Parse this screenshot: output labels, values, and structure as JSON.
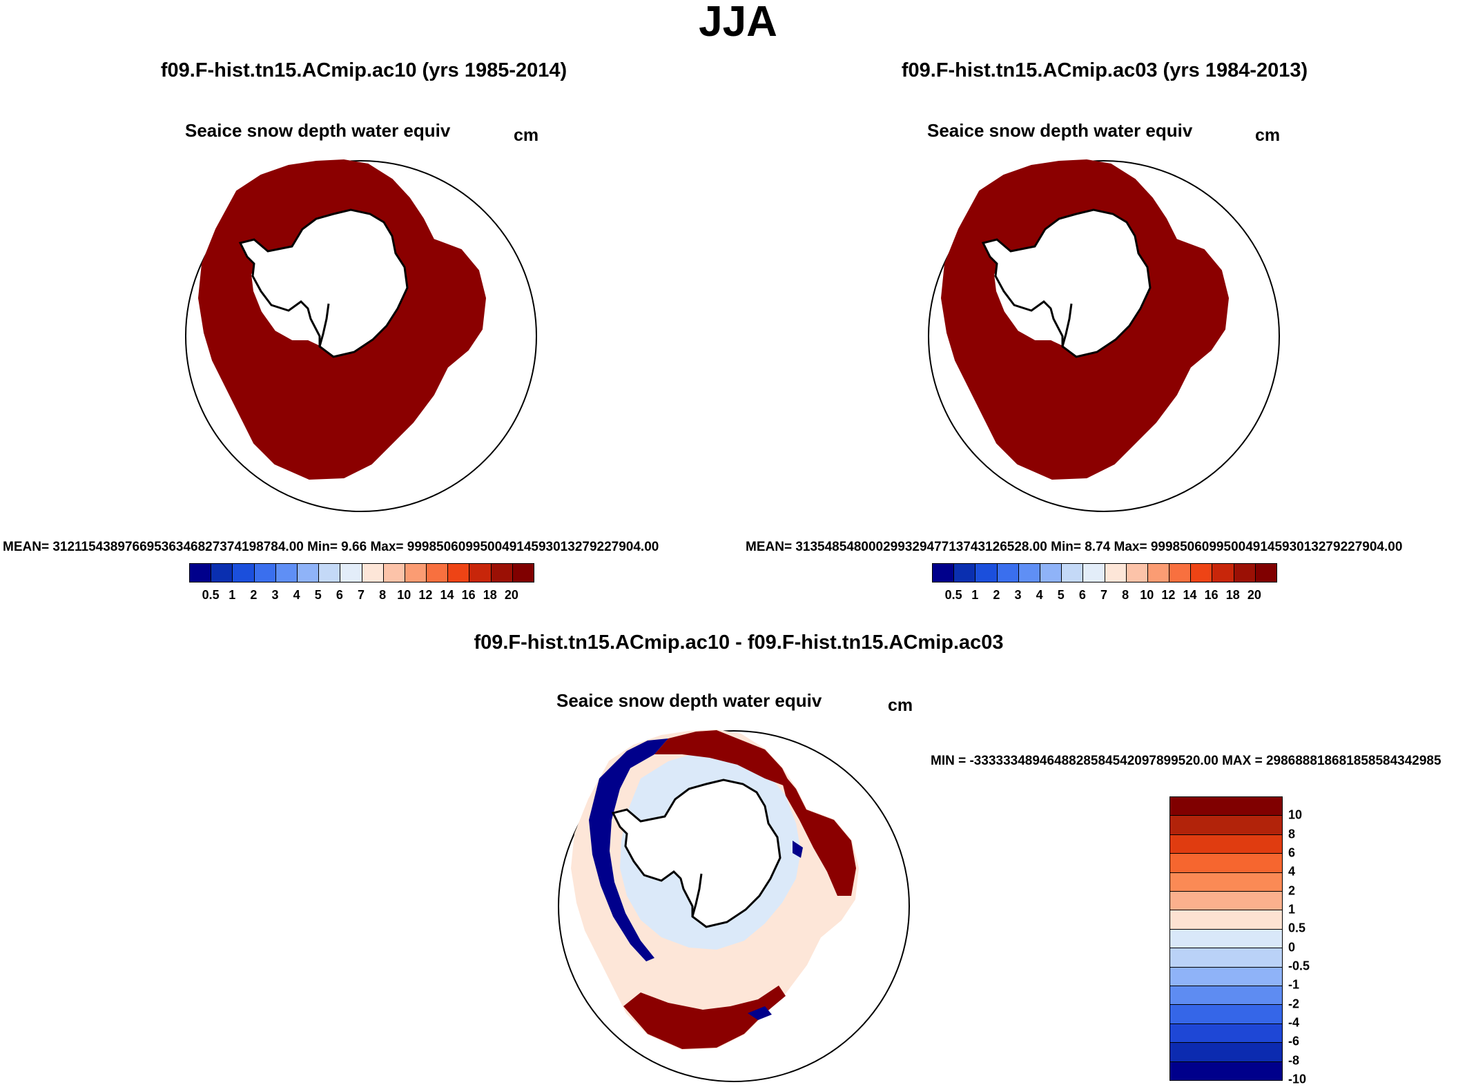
{
  "title": "JJA",
  "panels": {
    "case1": {
      "case_title": "f09.F-hist.tn15.ACmip.ac10 (yrs 1985-2014)",
      "var_title": "Seaice snow depth water equiv",
      "units": "cm",
      "stats": "MEAN= 3121154389766953634682737419878 4.00  Min=    9.66  Max= 999850609950049145930132792279 04.00"
    },
    "case2": {
      "case_title": "f09.F-hist.tn15.ACmip.ac03 (yrs 1984-2013)",
      "var_title": "Seaice snow depth water equiv",
      "units": "cm",
      "stats": "MEAN= 3135485480002993294771374312652 8.00  Min=    8.74  Max= 999850609950049145930132792279 04.00"
    },
    "diff": {
      "case_title": "f09.F-hist.tn15.ACmip.ac10 - f09.F-hist.tn15.ACmip.ac03",
      "var_title": "Seaice snow depth water equiv",
      "units": "cm",
      "stats": "MIN = -3333334894648828584542097899520.00 MAX = 2986888186818585843429 85"
    }
  },
  "colorbar_abs": {
    "colors": [
      "#00008b",
      "#0a2fb0",
      "#1b4fdc",
      "#3a6fee",
      "#5f8ff5",
      "#8fb3f8",
      "#c4d9f7",
      "#e3edf9",
      "#fde6d8",
      "#fcc3a9",
      "#fb9c73",
      "#f8703f",
      "#ee4415",
      "#c8260a",
      "#9b1005",
      "#800000"
    ],
    "labels": [
      "0.5",
      "1",
      "2",
      "3",
      "4",
      "5",
      "6",
      "7",
      "8",
      "10",
      "12",
      "14",
      "16",
      "18",
      "20"
    ]
  },
  "colorbar_diff": {
    "colors": [
      "#800000",
      "#b2230a",
      "#e03c10",
      "#f6662f",
      "#fb8a55",
      "#fbb08d",
      "#fde2d2",
      "#d9e8f9",
      "#bad2f7",
      "#8fb3f8",
      "#5e8cf2",
      "#3566e8",
      "#1e47d6",
      "#0c2bb0",
      "#00008b"
    ],
    "labels": [
      "10",
      "8",
      "6",
      "4",
      "2",
      "1",
      "0.5",
      "0",
      "-0.5",
      "-1",
      "-2",
      "-4",
      "-6",
      "-8",
      "-10"
    ]
  },
  "colors": {
    "high": "#8b0000",
    "pos_light": "#fde6d8",
    "neg_light": "#dbe9f9",
    "neg_strong": "#00008b"
  }
}
